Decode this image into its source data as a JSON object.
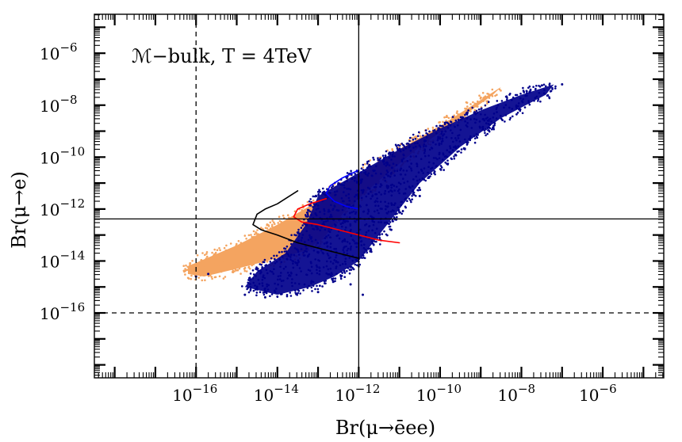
{
  "chart_data": {
    "type": "scatter",
    "x_scale": "log",
    "y_scale": "log",
    "xlim_exp": [
      -18.5,
      -4.5
    ],
    "ylim_exp": [
      -18.5,
      -4.5
    ],
    "x_ticks": [
      {
        "base": "10",
        "exp": "−16",
        "value_exp": -16
      },
      {
        "base": "10",
        "exp": "−14",
        "value_exp": -14
      },
      {
        "base": "10",
        "exp": "−12",
        "value_exp": -12
      },
      {
        "base": "10",
        "exp": "−10",
        "value_exp": -10
      },
      {
        "base": "10",
        "exp": "−8",
        "value_exp": -8
      },
      {
        "base": "10",
        "exp": "−6",
        "value_exp": -6
      }
    ],
    "y_ticks": [
      {
        "base": "10",
        "exp": "−6",
        "value_exp": -6
      },
      {
        "base": "10",
        "exp": "−8",
        "value_exp": -8
      },
      {
        "base": "10",
        "exp": "−10",
        "value_exp": -10
      },
      {
        "base": "10",
        "exp": "−12",
        "value_exp": -12
      },
      {
        "base": "10",
        "exp": "−14",
        "value_exp": -14
      },
      {
        "base": "10",
        "exp": "−16",
        "value_exp": -16
      }
    ],
    "xlabel": "Br(μ→ēee)",
    "ylabel": "Br(μ→e)",
    "annotation": "ℳ−bulk, T = 4TeV",
    "reference_lines": [
      {
        "orientation": "vertical",
        "style": "solid",
        "value_exp": -12.0
      },
      {
        "orientation": "vertical",
        "style": "dashed",
        "value_exp": -16.0
      },
      {
        "orientation": "horizontal",
        "style": "solid",
        "value_exp": -12.38
      },
      {
        "orientation": "horizontal",
        "style": "dashed",
        "value_exp": -16.0
      }
    ],
    "series": [
      {
        "name": "orange region",
        "color": "#f4a460",
        "outline_exp": [
          [
            -16.2,
            -14.2
          ],
          [
            -15.0,
            -13.4
          ],
          [
            -14.0,
            -12.6
          ],
          [
            -13.0,
            -11.7
          ],
          [
            -12.0,
            -10.7
          ],
          [
            -11.0,
            -9.7
          ],
          [
            -10.0,
            -8.8
          ],
          [
            -9.0,
            -7.8
          ],
          [
            -8.5,
            -7.3
          ],
          [
            -8.7,
            -7.6
          ],
          [
            -9.5,
            -8.5
          ],
          [
            -10.5,
            -9.6
          ],
          [
            -11.5,
            -10.9
          ],
          [
            -12.3,
            -12.0
          ],
          [
            -12.8,
            -13.0
          ],
          [
            -13.3,
            -13.6
          ],
          [
            -14.0,
            -13.9
          ],
          [
            -15.0,
            -14.3
          ],
          [
            -15.8,
            -14.6
          ],
          [
            -16.2,
            -14.5
          ]
        ]
      },
      {
        "name": "blue points",
        "color": "#00008b",
        "outline_exp": [
          [
            -13.0,
            -11.5
          ],
          [
            -12.0,
            -10.6
          ],
          [
            -11.0,
            -9.7
          ],
          [
            -10.0,
            -8.9
          ],
          [
            -9.0,
            -8.2
          ],
          [
            -8.0,
            -7.6
          ],
          [
            -7.2,
            -7.2
          ],
          [
            -7.4,
            -7.6
          ],
          [
            -8.5,
            -8.5
          ],
          [
            -9.5,
            -9.6
          ],
          [
            -10.5,
            -11.0
          ],
          [
            -11.0,
            -12.0
          ],
          [
            -11.5,
            -13.0
          ],
          [
            -12.0,
            -14.0
          ],
          [
            -12.6,
            -14.6
          ],
          [
            -13.2,
            -15.0
          ],
          [
            -14.0,
            -15.3
          ],
          [
            -14.8,
            -15.0
          ],
          [
            -14.5,
            -14.4
          ],
          [
            -13.8,
            -13.7
          ],
          [
            -13.3,
            -12.6
          ]
        ],
        "outliers_exp": [
          [
            -14.8,
            -15.3
          ],
          [
            -14.3,
            -15.4
          ],
          [
            -13.0,
            -15.2
          ],
          [
            -11.9,
            -15.3
          ],
          [
            -12.2,
            -14.9
          ],
          [
            -7.0,
            -7.2
          ],
          [
            -7.8,
            -7.5
          ],
          [
            -16.0,
            -14.6
          ],
          [
            -15.7,
            -14.5
          ],
          [
            -11.2,
            -12.8
          ],
          [
            -10.5,
            -11.5
          ]
        ]
      }
    ],
    "contours": [
      {
        "name": "black contour",
        "color": "#000000",
        "points_exp": [
          [
            -12.0,
            -13.9
          ],
          [
            -12.5,
            -13.7
          ],
          [
            -13.0,
            -13.5
          ],
          [
            -13.5,
            -13.3
          ],
          [
            -14.0,
            -13.0
          ],
          [
            -14.4,
            -12.8
          ],
          [
            -14.6,
            -12.6
          ],
          [
            -14.5,
            -12.2
          ],
          [
            -14.3,
            -12.0
          ],
          [
            -14.0,
            -11.8
          ],
          [
            -13.5,
            -11.3
          ]
        ]
      },
      {
        "name": "red contour",
        "color": "#ff0000",
        "points_exp": [
          [
            -11.0,
            -13.3
          ],
          [
            -11.5,
            -13.2
          ],
          [
            -12.0,
            -13.0
          ],
          [
            -12.5,
            -12.8
          ],
          [
            -13.0,
            -12.6
          ],
          [
            -13.4,
            -12.5
          ],
          [
            -13.6,
            -12.3
          ],
          [
            -13.5,
            -12.0
          ],
          [
            -13.2,
            -11.8
          ],
          [
            -12.8,
            -11.6
          ]
        ]
      },
      {
        "name": "blue contour",
        "color": "#0000ff",
        "points_exp": [
          [
            -12.0,
            -12.0
          ],
          [
            -12.3,
            -11.9
          ],
          [
            -12.6,
            -11.7
          ],
          [
            -12.8,
            -11.4
          ],
          [
            -12.7,
            -11.1
          ],
          [
            -12.4,
            -10.8
          ],
          [
            -12.0,
            -10.5
          ]
        ]
      }
    ]
  }
}
